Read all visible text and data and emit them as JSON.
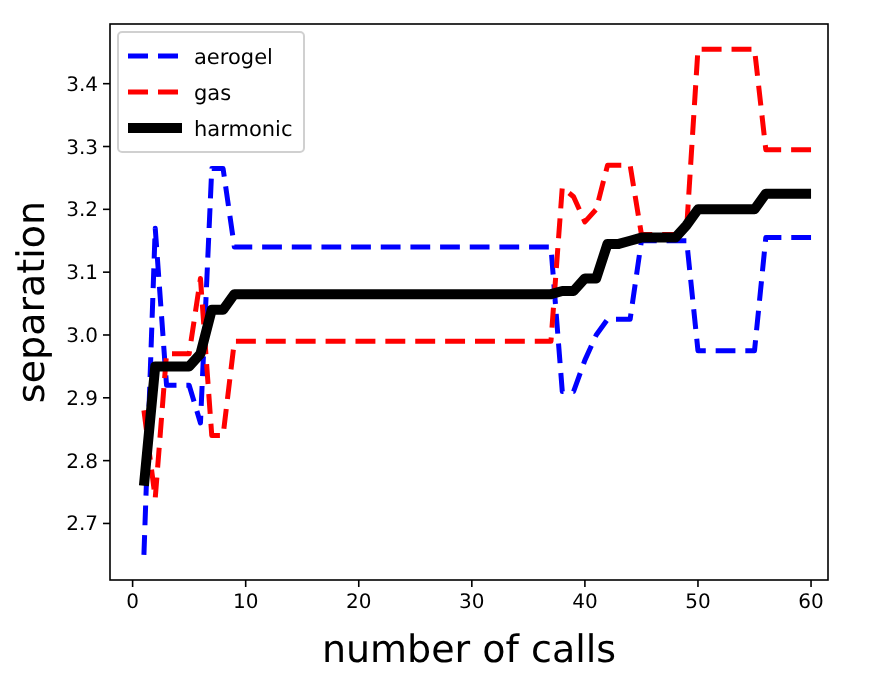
{
  "chart_data": {
    "type": "line",
    "xlabel": "number of calls",
    "ylabel": "separation",
    "xlim": [
      -2,
      61.5
    ],
    "ylim": [
      2.61,
      3.495
    ],
    "xticks": [
      0,
      10,
      20,
      30,
      40,
      50,
      60
    ],
    "yticks": [
      2.7,
      2.8,
      2.9,
      {
        "value": 3.0,
        "label": "3.0"
      },
      3.1,
      3.2,
      3.3,
      3.4
    ],
    "legend": "top left",
    "grid": false,
    "series": [
      {
        "name": "aerogel",
        "color": "#0000ff",
        "line_style": "dashed",
        "x": [
          1,
          2,
          3,
          4,
          5,
          6,
          7,
          8,
          9,
          37,
          38,
          39,
          40,
          41,
          42,
          44,
          45,
          48,
          49,
          50,
          55,
          56,
          60
        ],
        "values": [
          2.65,
          3.17,
          2.92,
          2.92,
          2.92,
          2.86,
          3.265,
          3.265,
          3.14,
          3.14,
          2.91,
          2.91,
          2.96,
          3.0,
          3.025,
          3.025,
          3.15,
          3.15,
          3.15,
          2.975,
          2.975,
          3.155,
          3.155
        ]
      },
      {
        "name": "gas",
        "color": "#ff0000",
        "line_style": "dashed",
        "x": [
          1,
          2,
          3,
          4,
          5,
          6,
          7,
          8,
          9,
          37,
          38,
          39,
          40,
          41,
          42,
          44,
          45,
          48,
          49,
          50,
          55,
          56,
          60
        ],
        "values": [
          2.88,
          2.74,
          2.97,
          2.97,
          2.97,
          3.09,
          2.84,
          2.84,
          2.99,
          2.99,
          3.235,
          3.22,
          3.18,
          3.2,
          3.27,
          3.27,
          3.16,
          3.16,
          3.17,
          3.455,
          3.455,
          3.295,
          3.295
        ]
      },
      {
        "name": "harmonic",
        "color": "#000000",
        "line_style": "solid",
        "x": [
          1,
          2,
          5,
          6,
          7,
          8,
          9,
          37,
          38,
          39,
          40,
          41,
          42,
          43,
          44,
          45,
          48,
          49,
          50,
          55,
          56,
          60
        ],
        "values": [
          2.76,
          2.95,
          2.95,
          2.97,
          3.04,
          3.04,
          3.065,
          3.065,
          3.07,
          3.07,
          3.09,
          3.09,
          3.145,
          3.145,
          3.15,
          3.155,
          3.155,
          3.175,
          3.2,
          3.2,
          3.225,
          3.225
        ]
      }
    ]
  }
}
